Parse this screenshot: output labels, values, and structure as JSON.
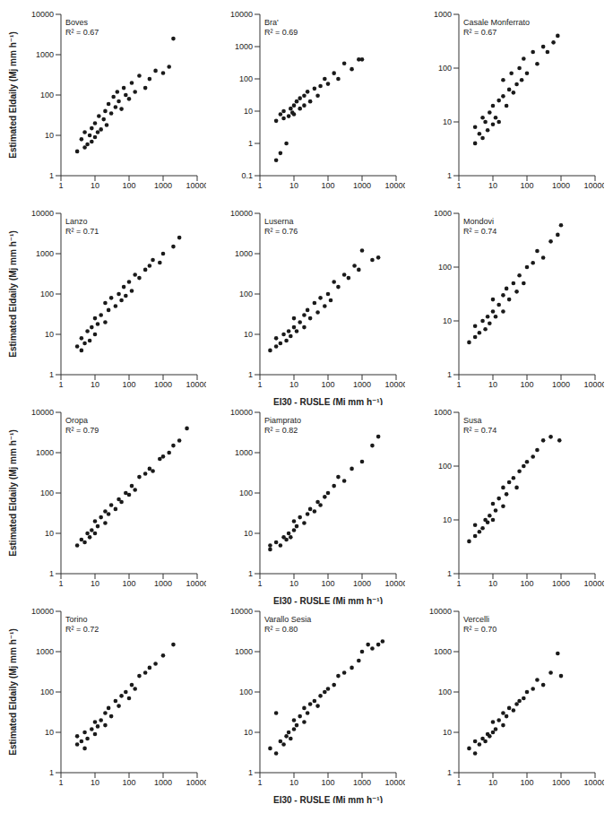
{
  "chart_data": [
    {
      "type": "scatter",
      "title": "Boves",
      "annotation": "R² = 0.67",
      "ylabel": "Estimated EIdaily (Mj mm h⁻¹)",
      "log": true,
      "grid": false,
      "color": "#1a1a1a",
      "marker": "circle",
      "xlim": [
        1,
        10000
      ],
      "xticks": [
        1,
        10,
        100,
        1000,
        10000
      ],
      "ylim": [
        1,
        10000
      ],
      "yticks": [
        1,
        10,
        100,
        1000,
        10000
      ],
      "x": [
        3,
        4,
        5,
        5,
        6,
        7,
        8,
        8,
        10,
        10,
        12,
        13,
        15,
        18,
        20,
        22,
        25,
        30,
        35,
        40,
        45,
        50,
        60,
        70,
        80,
        100,
        120,
        150,
        200,
        300,
        400,
        600,
        1000,
        1500,
        2000
      ],
      "values": [
        4,
        8,
        5,
        12,
        6,
        10,
        7,
        15,
        9,
        20,
        12,
        30,
        14,
        25,
        40,
        18,
        60,
        35,
        90,
        50,
        120,
        70,
        45,
        150,
        100,
        80,
        200,
        120,
        300,
        150,
        250,
        400,
        350,
        500,
        2500
      ]
    },
    {
      "type": "scatter",
      "title": "Bra'",
      "annotation": "R² = 0.69",
      "log": true,
      "grid": false,
      "color": "#1a1a1a",
      "marker": "circle",
      "xlim": [
        1,
        10000
      ],
      "xticks": [
        1,
        10,
        100,
        1000,
        10000
      ],
      "ylim": [
        0.1,
        10000
      ],
      "yticks": [
        0.1,
        1,
        10,
        100,
        1000,
        10000
      ],
      "x": [
        3,
        3,
        4,
        4,
        5,
        5,
        6,
        7,
        8,
        9,
        10,
        10,
        12,
        15,
        15,
        20,
        20,
        25,
        30,
        40,
        50,
        60,
        80,
        100,
        150,
        200,
        300,
        500,
        800,
        1000
      ],
      "values": [
        0.3,
        5,
        0.5,
        8,
        6,
        10,
        1,
        7,
        12,
        9,
        15,
        8,
        20,
        12,
        25,
        30,
        15,
        40,
        20,
        50,
        30,
        60,
        100,
        70,
        150,
        100,
        300,
        200,
        400,
        400
      ]
    },
    {
      "type": "scatter",
      "title": "Casale Monferrato",
      "annotation": "R² = 0.67",
      "log": true,
      "grid": false,
      "color": "#1a1a1a",
      "marker": "circle",
      "xlim": [
        1,
        10000
      ],
      "xticks": [
        1,
        10,
        100,
        1000,
        10000
      ],
      "ylim": [
        1,
        1000
      ],
      "yticks": [
        1,
        10,
        100,
        1000
      ],
      "x": [
        3,
        3,
        4,
        5,
        5,
        6,
        7,
        8,
        10,
        10,
        12,
        15,
        15,
        20,
        20,
        25,
        30,
        35,
        40,
        50,
        60,
        70,
        80,
        100,
        150,
        200,
        300,
        400,
        600,
        800
      ],
      "values": [
        4,
        8,
        6,
        5,
        12,
        10,
        7,
        15,
        9,
        20,
        12,
        25,
        10,
        30,
        60,
        20,
        40,
        80,
        35,
        50,
        100,
        60,
        150,
        80,
        200,
        120,
        250,
        200,
        300,
        400
      ]
    },
    {
      "type": "scatter",
      "title": "Lanzo",
      "annotation": "R² = 0.71",
      "ylabel": "Estimated EIdaily (Mj mm h⁻¹)",
      "log": true,
      "grid": false,
      "color": "#1a1a1a",
      "marker": "circle",
      "xlim": [
        1,
        10000
      ],
      "xticks": [
        1,
        10,
        100,
        1000,
        10000
      ],
      "ylim": [
        1,
        10000
      ],
      "yticks": [
        1,
        10,
        100,
        1000,
        10000
      ],
      "x": [
        3,
        4,
        4,
        5,
        6,
        7,
        8,
        10,
        10,
        12,
        15,
        20,
        20,
        25,
        30,
        40,
        50,
        60,
        70,
        80,
        100,
        120,
        150,
        200,
        300,
        400,
        500,
        800,
        1000,
        2000,
        3000
      ],
      "values": [
        5,
        4,
        8,
        6,
        12,
        7,
        15,
        10,
        25,
        18,
        30,
        20,
        60,
        40,
        80,
        50,
        100,
        70,
        150,
        90,
        200,
        120,
        300,
        250,
        400,
        500,
        700,
        600,
        1000,
        1500,
        2500
      ]
    },
    {
      "type": "scatter",
      "title": "Luserna",
      "annotation": "R² = 0.76",
      "xlabel": "EI30 - RUSLE (Mj mm h⁻¹)",
      "log": true,
      "grid": false,
      "color": "#1a1a1a",
      "marker": "circle",
      "xlim": [
        1,
        10000
      ],
      "xticks": [
        1,
        10,
        100,
        1000,
        10000
      ],
      "ylim": [
        1,
        10000
      ],
      "yticks": [
        1,
        10,
        100,
        1000,
        10000
      ],
      "x": [
        2,
        3,
        3,
        4,
        5,
        6,
        7,
        8,
        10,
        10,
        12,
        15,
        20,
        20,
        25,
        30,
        40,
        50,
        60,
        80,
        100,
        120,
        150,
        200,
        300,
        400,
        600,
        800,
        1000,
        2000,
        3000
      ],
      "values": [
        4,
        5,
        8,
        6,
        10,
        7,
        12,
        9,
        15,
        25,
        12,
        20,
        30,
        15,
        40,
        25,
        60,
        35,
        80,
        50,
        100,
        70,
        200,
        150,
        300,
        250,
        500,
        400,
        1200,
        700,
        800
      ]
    },
    {
      "type": "scatter",
      "title": "Mondovi",
      "annotation": "R² = 0.74",
      "log": true,
      "grid": false,
      "color": "#1a1a1a",
      "marker": "circle",
      "xlim": [
        1,
        10000
      ],
      "xticks": [
        1,
        10,
        100,
        1000,
        10000
      ],
      "ylim": [
        1,
        1000
      ],
      "yticks": [
        1,
        10,
        100,
        1000
      ],
      "x": [
        2,
        3,
        3,
        4,
        5,
        6,
        7,
        8,
        10,
        10,
        12,
        15,
        20,
        20,
        25,
        30,
        40,
        50,
        60,
        80,
        100,
        150,
        200,
        300,
        500,
        800,
        1000
      ],
      "values": [
        4,
        5,
        8,
        6,
        10,
        7,
        12,
        9,
        15,
        25,
        12,
        20,
        30,
        15,
        40,
        25,
        50,
        35,
        70,
        50,
        100,
        120,
        200,
        150,
        300,
        400,
        600
      ]
    },
    {
      "type": "scatter",
      "title": "Oropa",
      "annotation": "R² = 0.79",
      "ylabel": "Estimated EIdaily (Mj mm h⁻¹)",
      "log": true,
      "grid": false,
      "color": "#1a1a1a",
      "marker": "circle",
      "xlim": [
        1,
        10000
      ],
      "xticks": [
        1,
        10,
        100,
        1000,
        10000
      ],
      "ylim": [
        1,
        10000
      ],
      "yticks": [
        1,
        10,
        100,
        1000,
        10000
      ],
      "x": [
        3,
        4,
        5,
        6,
        7,
        8,
        10,
        10,
        12,
        15,
        20,
        20,
        25,
        30,
        40,
        50,
        60,
        80,
        100,
        120,
        150,
        200,
        300,
        400,
        500,
        800,
        1000,
        1500,
        2000,
        3000,
        5000
      ],
      "values": [
        5,
        7,
        6,
        10,
        8,
        12,
        10,
        20,
        15,
        25,
        18,
        35,
        30,
        50,
        40,
        70,
        60,
        100,
        90,
        150,
        120,
        250,
        300,
        400,
        350,
        700,
        800,
        1000,
        1500,
        2000,
        4000
      ]
    },
    {
      "type": "scatter",
      "title": "Piamprato",
      "annotation": "R² = 0.82",
      "xlabel": "EI30 - RUSLE (Mj mm h⁻¹)",
      "log": true,
      "grid": false,
      "color": "#1a1a1a",
      "marker": "circle",
      "xlim": [
        1,
        10000
      ],
      "xticks": [
        1,
        10,
        100,
        1000,
        10000
      ],
      "ylim": [
        1,
        10000
      ],
      "yticks": [
        1,
        10,
        100,
        1000,
        10000
      ],
      "x": [
        2,
        2,
        3,
        4,
        5,
        6,
        7,
        8,
        10,
        10,
        12,
        15,
        20,
        25,
        30,
        40,
        50,
        60,
        80,
        100,
        150,
        200,
        300,
        500,
        1000,
        2000,
        3000
      ],
      "values": [
        5,
        4,
        6,
        5,
        8,
        7,
        10,
        8,
        12,
        20,
        15,
        25,
        18,
        30,
        40,
        35,
        60,
        50,
        80,
        100,
        150,
        250,
        200,
        400,
        600,
        1500,
        2500
      ]
    },
    {
      "type": "scatter",
      "title": "Susa",
      "annotation": "R² = 0.74",
      "log": true,
      "grid": false,
      "color": "#1a1a1a",
      "marker": "circle",
      "xlim": [
        1,
        10000
      ],
      "xticks": [
        1,
        10,
        100,
        1000,
        10000
      ],
      "ylim": [
        1,
        1000
      ],
      "yticks": [
        1,
        10,
        100,
        1000
      ],
      "x": [
        2,
        3,
        3,
        4,
        5,
        6,
        7,
        8,
        10,
        10,
        12,
        15,
        20,
        20,
        25,
        30,
        40,
        50,
        60,
        80,
        100,
        150,
        200,
        300,
        500,
        900
      ],
      "values": [
        4,
        5,
        8,
        6,
        7,
        10,
        9,
        12,
        10,
        20,
        15,
        25,
        18,
        40,
        30,
        50,
        60,
        40,
        80,
        100,
        120,
        150,
        200,
        300,
        350,
        300
      ]
    },
    {
      "type": "scatter",
      "title": "Torino",
      "annotation": "R² = 0.72",
      "ylabel": "Estimated EIdaily (Mj mm h⁻¹)",
      "log": true,
      "grid": false,
      "color": "#1a1a1a",
      "marker": "circle",
      "xlim": [
        1,
        10000
      ],
      "xticks": [
        1,
        10,
        100,
        1000,
        10000
      ],
      "ylim": [
        1,
        10000
      ],
      "yticks": [
        1,
        10,
        100,
        1000,
        10000
      ],
      "x": [
        3,
        3,
        4,
        5,
        5,
        6,
        8,
        10,
        10,
        12,
        15,
        20,
        20,
        25,
        30,
        40,
        50,
        60,
        80,
        100,
        120,
        150,
        200,
        300,
        400,
        600,
        1000,
        2000
      ],
      "values": [
        5,
        8,
        6,
        4,
        10,
        7,
        12,
        9,
        18,
        14,
        20,
        15,
        30,
        40,
        25,
        60,
        45,
        80,
        100,
        70,
        150,
        120,
        250,
        300,
        400,
        500,
        800,
        1500
      ]
    },
    {
      "type": "scatter",
      "title": "Varallo Sesia",
      "annotation": "R² = 0.80",
      "xlabel": "EI30 - RUSLE (Mj mm h⁻¹)",
      "log": true,
      "grid": false,
      "color": "#1a1a1a",
      "marker": "circle",
      "xlim": [
        1,
        10000
      ],
      "xticks": [
        1,
        10,
        100,
        1000,
        10000
      ],
      "ylim": [
        1,
        10000
      ],
      "yticks": [
        1,
        10,
        100,
        1000,
        10000
      ],
      "x": [
        2,
        3,
        3,
        4,
        5,
        6,
        7,
        8,
        10,
        10,
        12,
        15,
        20,
        20,
        25,
        30,
        40,
        50,
        60,
        80,
        100,
        150,
        200,
        300,
        500,
        800,
        1000,
        1500,
        2000,
        3000,
        4000
      ],
      "values": [
        4,
        3,
        30,
        6,
        5,
        8,
        10,
        7,
        12,
        20,
        15,
        25,
        18,
        40,
        30,
        50,
        60,
        45,
        80,
        100,
        120,
        150,
        250,
        300,
        400,
        600,
        1000,
        1500,
        1200,
        1500,
        1800
      ]
    },
    {
      "type": "scatter",
      "title": "Vercelli",
      "annotation": "R² = 0.70",
      "log": true,
      "grid": false,
      "color": "#1a1a1a",
      "marker": "circle",
      "xlim": [
        1,
        10000
      ],
      "xticks": [
        1,
        10,
        100,
        1000,
        10000
      ],
      "ylim": [
        1,
        10000
      ],
      "yticks": [
        1,
        10,
        100,
        1000,
        10000
      ],
      "x": [
        2,
        3,
        3,
        4,
        5,
        6,
        7,
        8,
        10,
        10,
        12,
        15,
        20,
        20,
        25,
        30,
        40,
        50,
        60,
        80,
        100,
        150,
        200,
        300,
        500,
        800,
        1000
      ],
      "values": [
        4,
        6,
        3,
        5,
        7,
        6,
        9,
        8,
        10,
        18,
        12,
        20,
        15,
        30,
        25,
        40,
        35,
        50,
        60,
        70,
        100,
        120,
        200,
        150,
        300,
        900,
        250
      ]
    }
  ]
}
